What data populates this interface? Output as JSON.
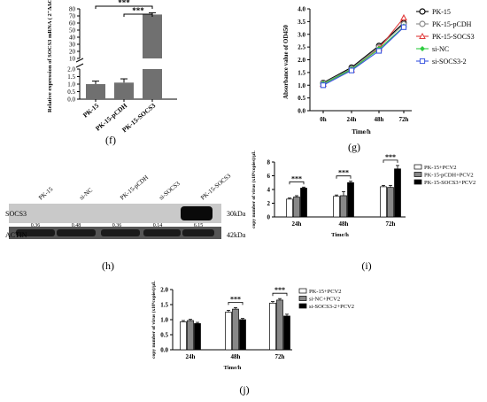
{
  "panels": {
    "f": {
      "label": "(f)"
    },
    "g": {
      "label": "(g)"
    },
    "h": {
      "label": "(h)"
    },
    "i": {
      "label": "(i)"
    },
    "j": {
      "label": "(j)"
    }
  },
  "chart_data": [
    {
      "panel": "f",
      "type": "bar",
      "categories": [
        "PK-15",
        "PK-15-pCDH",
        "PK-15-SOCS3"
      ],
      "values": [
        1.0,
        1.1,
        72
      ],
      "errors": [
        0.2,
        0.25,
        2.5
      ],
      "ylabel": "Relative expression of SOCS3 mRNA ( 2⁻ΔΔCt )",
      "yticks": [
        "0.0",
        "0.5",
        "1.0",
        "1.5",
        "2.0",
        "10",
        "20",
        "30",
        "40",
        "50",
        "60",
        "70",
        "80"
      ],
      "ylim": [
        0,
        80
      ],
      "broken_axis": true,
      "significance": [
        {
          "from": "PK-15",
          "to": "PK-15-SOCS3",
          "text": "***"
        },
        {
          "from": "PK-15-pCDH",
          "to": "PK-15-SOCS3",
          "text": "***"
        }
      ]
    },
    {
      "panel": "g",
      "type": "line",
      "x": [
        "0h",
        "24h",
        "48h",
        "72h"
      ],
      "ylabel": "Absorbance value of OD450",
      "xlabel": "Time/h",
      "ylim": [
        0.0,
        4.0
      ],
      "yticks": [
        "0.0",
        "0.5",
        "1.0",
        "1.5",
        "2.0",
        "2.5",
        "3.0",
        "3.5",
        "4.0"
      ],
      "series": [
        {
          "name": "PK-15",
          "values": [
            1.1,
            1.7,
            2.55,
            3.45
          ],
          "color": "#000000",
          "marker": "circle"
        },
        {
          "name": "PK-15-pCDH",
          "values": [
            1.08,
            1.65,
            2.5,
            3.4
          ],
          "color": "#888888",
          "marker": "circle"
        },
        {
          "name": "PK-15-SOCS3",
          "values": [
            1.05,
            1.6,
            2.45,
            3.65
          ],
          "color": "#e03a3a",
          "marker": "triangle"
        },
        {
          "name": "si-NC",
          "values": [
            1.05,
            1.62,
            2.42,
            3.3
          ],
          "color": "#2ecc40",
          "marker": "diamond"
        },
        {
          "name": "si-SOCS3-2",
          "values": [
            1.0,
            1.58,
            2.35,
            3.28
          ],
          "color": "#3a55e0",
          "marker": "square"
        }
      ],
      "legend": "top-right"
    },
    {
      "panel": "h",
      "type": "table",
      "lanes": [
        "PK-15",
        "si-NC",
        "PK-15-pCDH",
        "si-SOCS3",
        "PK-15-SOCS3"
      ],
      "rows": [
        {
          "name": "SOCS3",
          "size": "30kDa",
          "values": [
            "0.36",
            "0.48",
            "0.36",
            "0.14",
            "6.15"
          ]
        },
        {
          "name": "ACTIN",
          "size": "42kDa"
        }
      ]
    },
    {
      "panel": "i",
      "type": "bar",
      "categories": [
        "24h",
        "48h",
        "72h"
      ],
      "xlabel": "Time/h",
      "ylabel": "copy number of virus (x10⁶copies)/μL",
      "ylim": [
        0,
        8
      ],
      "yticks": [
        "0",
        "2",
        "4",
        "6",
        "8"
      ],
      "series": [
        {
          "name": "PK-15+PCV2",
          "values": [
            2.6,
            3.0,
            4.4
          ],
          "errors": [
            0.15,
            0.2,
            0.2
          ],
          "color": "#ffffff"
        },
        {
          "name": "PK-15-pCDH+PCV2",
          "values": [
            2.9,
            3.1,
            4.3
          ],
          "errors": [
            0.2,
            0.6,
            0.3
          ],
          "color": "#888888"
        },
        {
          "name": "PK-15-SOCS3+PCV2",
          "values": [
            4.2,
            5.0,
            7.0
          ],
          "errors": [
            0.15,
            0.2,
            0.5
          ],
          "color": "#000000"
        }
      ],
      "significance": [
        "***",
        "***",
        "***"
      ],
      "legend": "top-right"
    },
    {
      "panel": "j",
      "type": "bar",
      "categories": [
        "24h",
        "48h",
        "72h"
      ],
      "xlabel": "Time/h",
      "ylabel": "copy number of virus (x10⁶copies)/μL",
      "ylim": [
        0.0,
        2.0
      ],
      "yticks": [
        "0.0",
        "0.5",
        "1.0",
        "1.5",
        "2.0"
      ],
      "series": [
        {
          "name": "PK-15+PCV2",
          "values": [
            0.93,
            1.25,
            1.55
          ],
          "errors": [
            0.04,
            0.06,
            0.05
          ],
          "color": "#ffffff"
        },
        {
          "name": "si-NC+PCV2",
          "values": [
            0.97,
            1.35,
            1.65
          ],
          "errors": [
            0.04,
            0.05,
            0.05
          ],
          "color": "#888888"
        },
        {
          "name": "si-SOCS3-2+PCV2",
          "values": [
            0.87,
            1.0,
            1.12
          ],
          "errors": [
            0.04,
            0.04,
            0.06
          ],
          "color": "#000000"
        }
      ],
      "significance": [
        "",
        "***",
        "***"
      ],
      "legend": "top-right"
    }
  ]
}
